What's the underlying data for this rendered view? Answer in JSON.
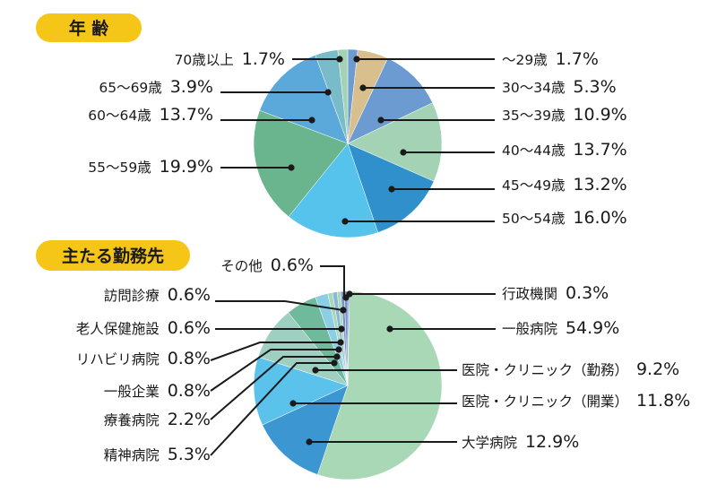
{
  "colors": {
    "pill": "#F5C518",
    "age_palette": [
      "#6C9BD2",
      "#D9BE8E",
      "#6C9BD2",
      "#A3D3B4",
      "#2F90CC",
      "#56C3EC",
      "#6BB58E",
      "#5BA8DA",
      "#79BBC9",
      "#A3D3B4",
      "#6C9BD2",
      "#D9BE8E"
    ],
    "work_palette": [
      "#7893C9",
      "#A8D8B5",
      "#3C96D2",
      "#5BC2EB",
      "#9FCFC0",
      "#6FB99C",
      "#8CCFE4",
      "#A8D8B5",
      "#8AB6D8",
      "#A8D8B5",
      "#7893C9"
    ]
  },
  "chart_data": [
    {
      "type": "pie",
      "title": "年 齢",
      "slices": [
        {
          "label": "〜29歳",
          "value_label": "1.7%",
          "value": 1.7
        },
        {
          "label": "30〜34歳",
          "value_label": "5.3%",
          "value": 5.3
        },
        {
          "label": "35〜39歳",
          "value_label": "10.9%",
          "value": 10.9
        },
        {
          "label": "40〜44歳",
          "value_label": "13.7%",
          "value": 13.7
        },
        {
          "label": "45〜49歳",
          "value_label": "13.2%",
          "value": 13.2
        },
        {
          "label": "50〜54歳",
          "value_label": "16.0%",
          "value": 16.0
        },
        {
          "label": "55〜59歳",
          "value_label": "19.9%",
          "value": 19.9
        },
        {
          "label": "60〜64歳",
          "value_label": "13.7%",
          "value": 13.7
        },
        {
          "label": "65〜69歳",
          "value_label": "3.9%",
          "value": 3.9
        },
        {
          "label": "70歳以上",
          "value_label": "1.7%",
          "value": 1.7
        }
      ]
    },
    {
      "type": "pie",
      "title": "主たる勤務先",
      "slices": [
        {
          "label": "行政機関",
          "value_label": "0.3%",
          "value": 0.3
        },
        {
          "label": "一般病院",
          "value_label": "54.9%",
          "value": 54.9
        },
        {
          "label": "大学病院",
          "value_label": "12.9%",
          "value": 12.9
        },
        {
          "label": "医院・クリニック（開業）",
          "value_label": "11.8%",
          "value": 11.8
        },
        {
          "label": "医院・クリニック（勤務）",
          "value_label": "9.2%",
          "value": 9.2
        },
        {
          "label": "精神病院",
          "value_label": "5.3%",
          "value": 5.3
        },
        {
          "label": "療養病院",
          "value_label": "2.2%",
          "value": 2.2
        },
        {
          "label": "一般企業",
          "value_label": "0.8%",
          "value": 0.8
        },
        {
          "label": "リハビリ病院",
          "value_label": "0.8%",
          "value": 0.8
        },
        {
          "label": "老人保健施設",
          "value_label": "0.6%",
          "value": 0.6
        },
        {
          "label": "訪問診療",
          "value_label": "0.6%",
          "value": 0.6
        },
        {
          "label": "その他",
          "value_label": "0.6%",
          "value": 0.6
        }
      ]
    }
  ]
}
